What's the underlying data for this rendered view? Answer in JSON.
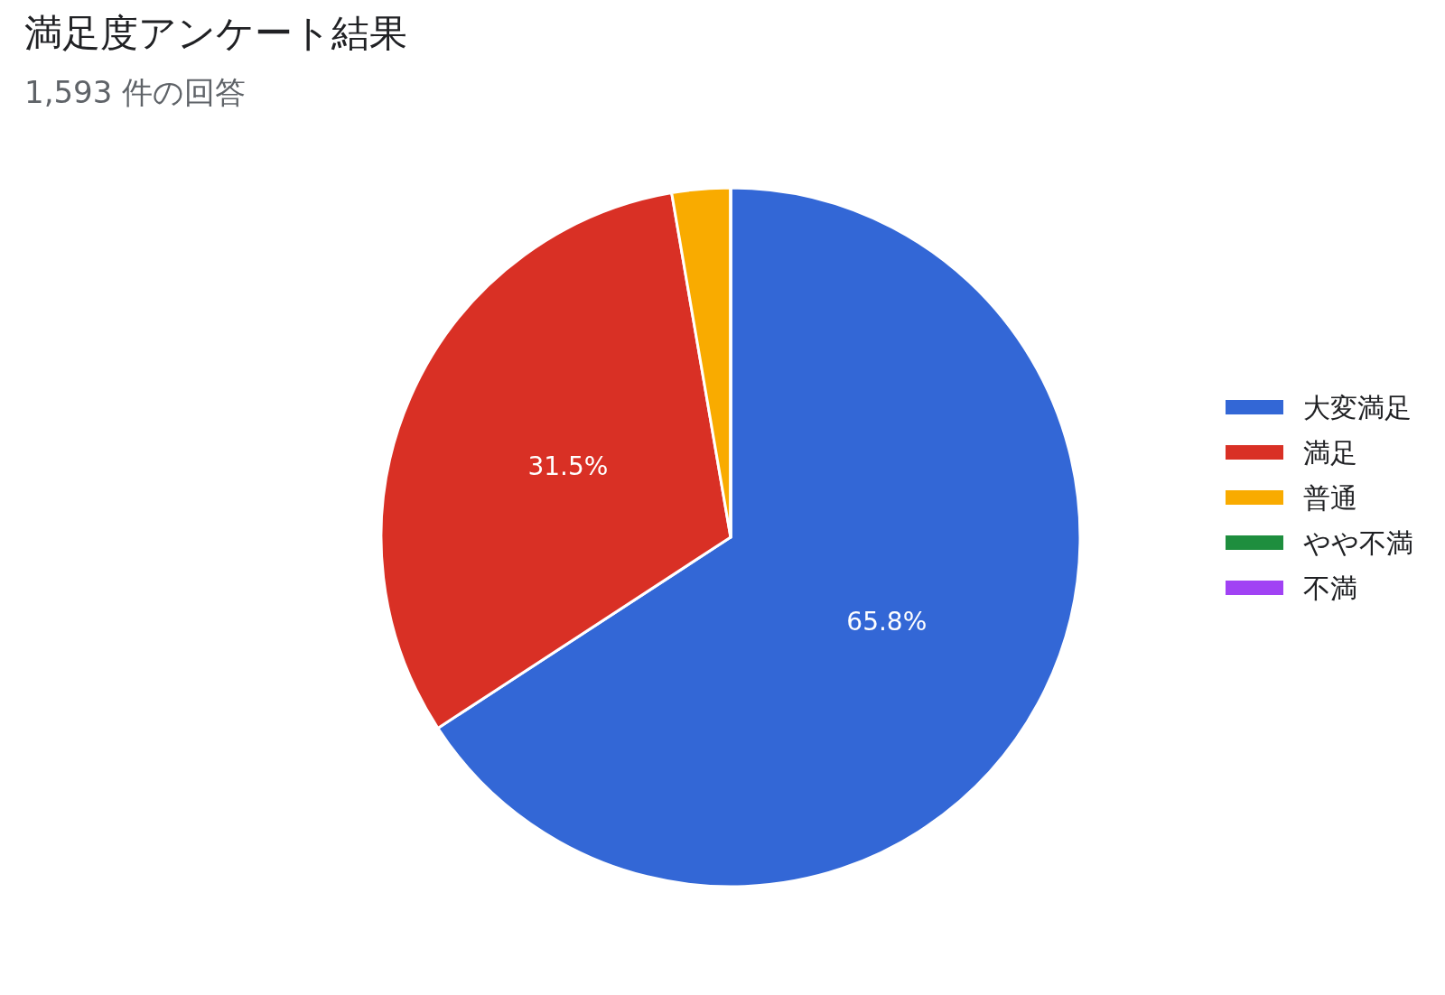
{
  "chart_data": {
    "type": "pie",
    "title": "満足度アンケート結果",
    "subtitle": "1,593 件の回答",
    "categories": [
      "大変満足",
      "満足",
      "普通",
      "やや不満",
      "不満"
    ],
    "values": [
      65.8,
      31.5,
      2.7,
      0,
      0
    ],
    "colors": [
      "#3367d6",
      "#d93025",
      "#f9ab00",
      "#1e8e3e",
      "#a142f4"
    ],
    "value_labels": [
      "65.8%",
      "31.5%",
      null,
      null,
      null
    ],
    "legend": "right"
  }
}
